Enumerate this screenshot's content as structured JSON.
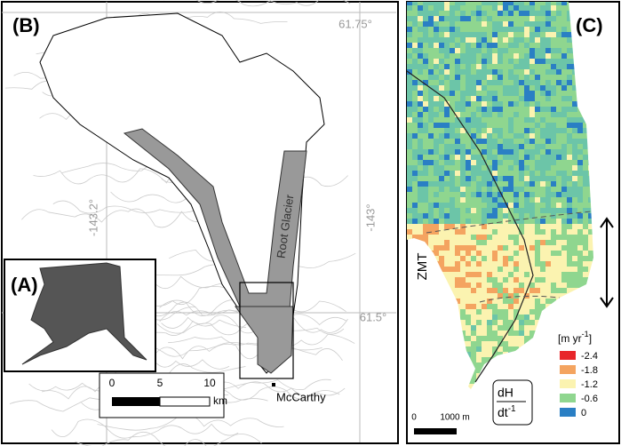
{
  "panel_b": {
    "label": "(B)",
    "lat_top": "61.75°",
    "lat_bottom": "61.5°",
    "lon_left": "-143.2°",
    "lon_right": "-143°",
    "glacier": "Root Glacier",
    "town": "McCarthy",
    "scale": {
      "ticks": [
        "0",
        "5",
        "10"
      ],
      "unit": "km"
    }
  },
  "panel_a": {
    "label": "(A)"
  },
  "panel_c": {
    "label": "(C)",
    "side_label": "ZMT",
    "units": {
      "open": "[m yr",
      "exp": "-1",
      "close": "]"
    },
    "legend": [
      {
        "label": "-2.4",
        "color": "#e8262a"
      },
      {
        "label": "-1.8",
        "color": "#f4a460"
      },
      {
        "label": "-1.2",
        "color": "#fbf3b0"
      },
      {
        "label": "-0.6",
        "color": "#8fd68f"
      },
      {
        "label": "0",
        "color": "#2a7fc4"
      }
    ],
    "rate": {
      "top": "dH",
      "bottom": "dt",
      "exp": "-1"
    },
    "scale": {
      "start": "0",
      "end": "1000 m"
    }
  }
}
